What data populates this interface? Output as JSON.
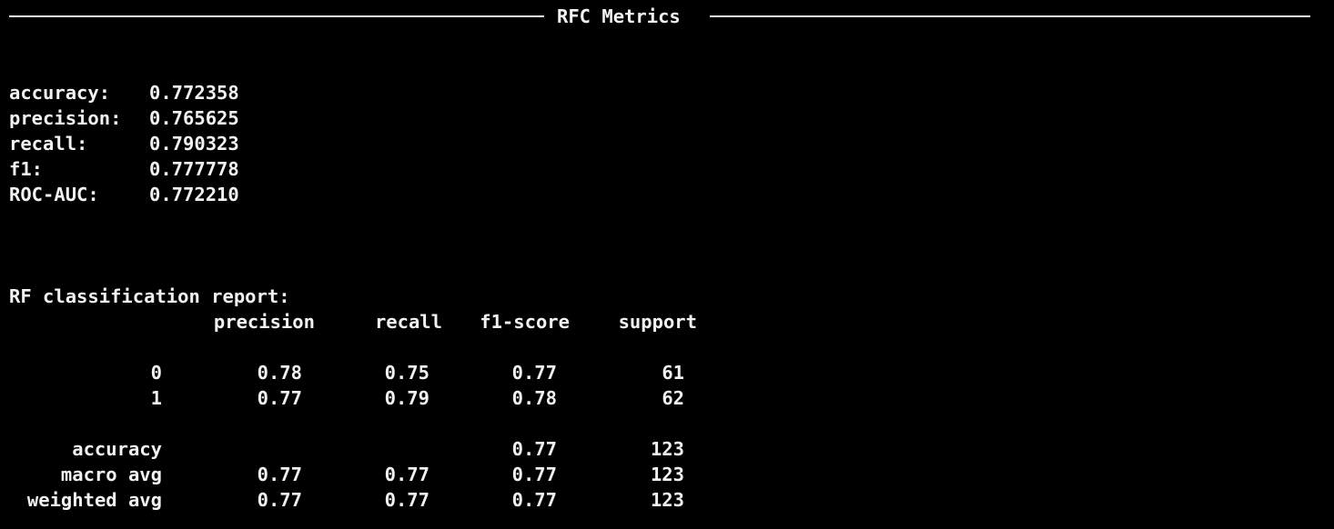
{
  "colors": {
    "background": "#000000",
    "text": "#f2f2f2"
  },
  "header": {
    "title": "RFC Metrics"
  },
  "metrics": [
    {
      "label": "accuracy:",
      "value": "0.772358"
    },
    {
      "label": "precision:",
      "value": "0.765625"
    },
    {
      "label": "recall:",
      "value": "0.790323"
    },
    {
      "label": "f1:",
      "value": "0.777778"
    },
    {
      "label": "ROC-AUC:",
      "value": "0.772210"
    }
  ],
  "report": {
    "title": "RF classification report:",
    "columns": [
      "precision",
      "recall",
      "f1-score",
      "support"
    ],
    "rows": [
      {
        "label": "0",
        "precision": "0.78",
        "recall": "0.75",
        "f1": "0.77",
        "support": "61"
      },
      {
        "label": "1",
        "precision": "0.77",
        "recall": "0.79",
        "f1": "0.78",
        "support": "62"
      }
    ],
    "summary": [
      {
        "label": "accuracy",
        "precision": "",
        "recall": "",
        "f1": "0.77",
        "support": "123"
      },
      {
        "label": "macro avg",
        "precision": "0.77",
        "recall": "0.77",
        "f1": "0.77",
        "support": "123"
      },
      {
        "label": "weighted avg",
        "precision": "0.77",
        "recall": "0.77",
        "f1": "0.77",
        "support": "123"
      }
    ]
  }
}
